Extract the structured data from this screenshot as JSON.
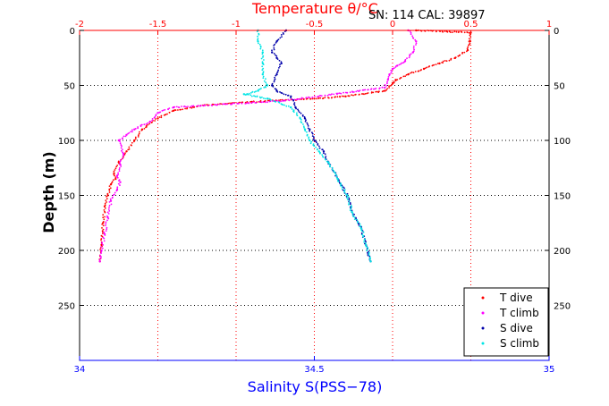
{
  "chart_data": {
    "type": "scatter",
    "title": "Temperature θ/°C",
    "annotation": "SN: 114  CAL: 39897",
    "ylabel": "Depth (m)",
    "xlabel": "Salinity S(PSS−78)",
    "y_axis": {
      "range": [
        0,
        300
      ],
      "inverted": true,
      "ticks": [
        0,
        50,
        100,
        150,
        200,
        250
      ],
      "tick_labels": [
        "0",
        "50",
        "100",
        "150",
        "200",
        "250"
      ]
    },
    "x_top": {
      "label": "Temperature θ/°C",
      "range": [
        -2,
        1
      ],
      "ticks": [
        -2,
        -1.5,
        -1,
        -0.5,
        0,
        0.5,
        1
      ],
      "tick_labels": [
        "-2",
        "-1.5",
        "-1",
        "-0.5",
        "0",
        "0.5",
        "1"
      ]
    },
    "x_bottom": {
      "label": "Salinity S(PSS−78)",
      "range": [
        34,
        35
      ],
      "ticks": [
        34,
        34.5,
        35
      ],
      "tick_labels": [
        "34",
        "34.5",
        "35"
      ]
    },
    "grid": true,
    "legend_position": "bottom-right",
    "colors": {
      "t_dive": "#ff0000",
      "t_climb": "#ff00ff",
      "s_dive": "#0000aa",
      "s_climb": "#00e5e5"
    },
    "series": [
      {
        "name": "T dive",
        "axis": "top",
        "color": "#ff0000",
        "x": [
          0.15,
          0.5,
          0.49,
          0.48,
          0.4,
          0.3,
          0.2,
          0.1,
          0.02,
          0.0,
          -0.05,
          -0.3,
          -0.5,
          -0.9,
          -1.2,
          -1.4,
          -1.5,
          -1.6,
          -1.65,
          -1.7,
          -1.75,
          -1.78,
          -1.77,
          -1.8,
          -1.82,
          -1.84,
          -1.85,
          -1.86,
          -1.87
        ],
        "y": [
          0,
          2,
          10,
          18,
          25,
          30,
          35,
          40,
          45,
          48,
          55,
          60,
          62,
          65,
          68,
          73,
          80,
          90,
          100,
          110,
          120,
          130,
          135,
          140,
          150,
          160,
          175,
          195,
          210
        ]
      },
      {
        "name": "T climb",
        "axis": "top",
        "color": "#ff00ff",
        "x": [
          0.1,
          0.15,
          0.13,
          0.08,
          0.03,
          0.0,
          -0.02,
          -0.03,
          -0.05,
          -0.7,
          -1.4,
          -1.5,
          -1.55,
          -1.65,
          -1.7,
          -1.75,
          -1.72,
          -1.74,
          -1.76,
          -1.74,
          -1.76,
          -1.8,
          -1.82,
          -1.84,
          -1.86,
          -1.87
        ],
        "y": [
          0,
          10,
          20,
          28,
          32,
          35,
          40,
          45,
          52,
          64,
          70,
          75,
          83,
          90,
          95,
          100,
          112,
          122,
          132,
          138,
          145,
          155,
          170,
          185,
          200,
          210
        ]
      },
      {
        "name": "S dive",
        "axis": "bottom",
        "color": "#0000aa",
        "x": [
          34.44,
          34.42,
          34.41,
          34.42,
          34.43,
          34.42,
          34.41,
          34.42,
          34.45,
          34.46,
          34.48,
          34.49,
          34.5,
          34.52,
          34.53,
          34.55,
          34.57,
          34.58,
          34.6,
          34.61,
          34.62
        ],
        "y": [
          0,
          10,
          20,
          25,
          30,
          40,
          50,
          55,
          60,
          70,
          80,
          90,
          100,
          110,
          120,
          135,
          150,
          165,
          180,
          195,
          210
        ]
      },
      {
        "name": "S climb",
        "axis": "bottom",
        "color": "#00e5e5",
        "x": [
          34.38,
          34.38,
          34.39,
          34.39,
          34.39,
          34.4,
          34.38,
          34.35,
          34.4,
          34.45,
          34.47,
          34.48,
          34.49,
          34.51,
          34.53,
          34.55,
          34.57,
          34.58,
          34.6,
          34.61,
          34.62
        ],
        "y": [
          0,
          10,
          20,
          30,
          40,
          50,
          55,
          58,
          62,
          70,
          80,
          90,
          100,
          110,
          120,
          135,
          150,
          165,
          180,
          195,
          210
        ]
      }
    ]
  }
}
